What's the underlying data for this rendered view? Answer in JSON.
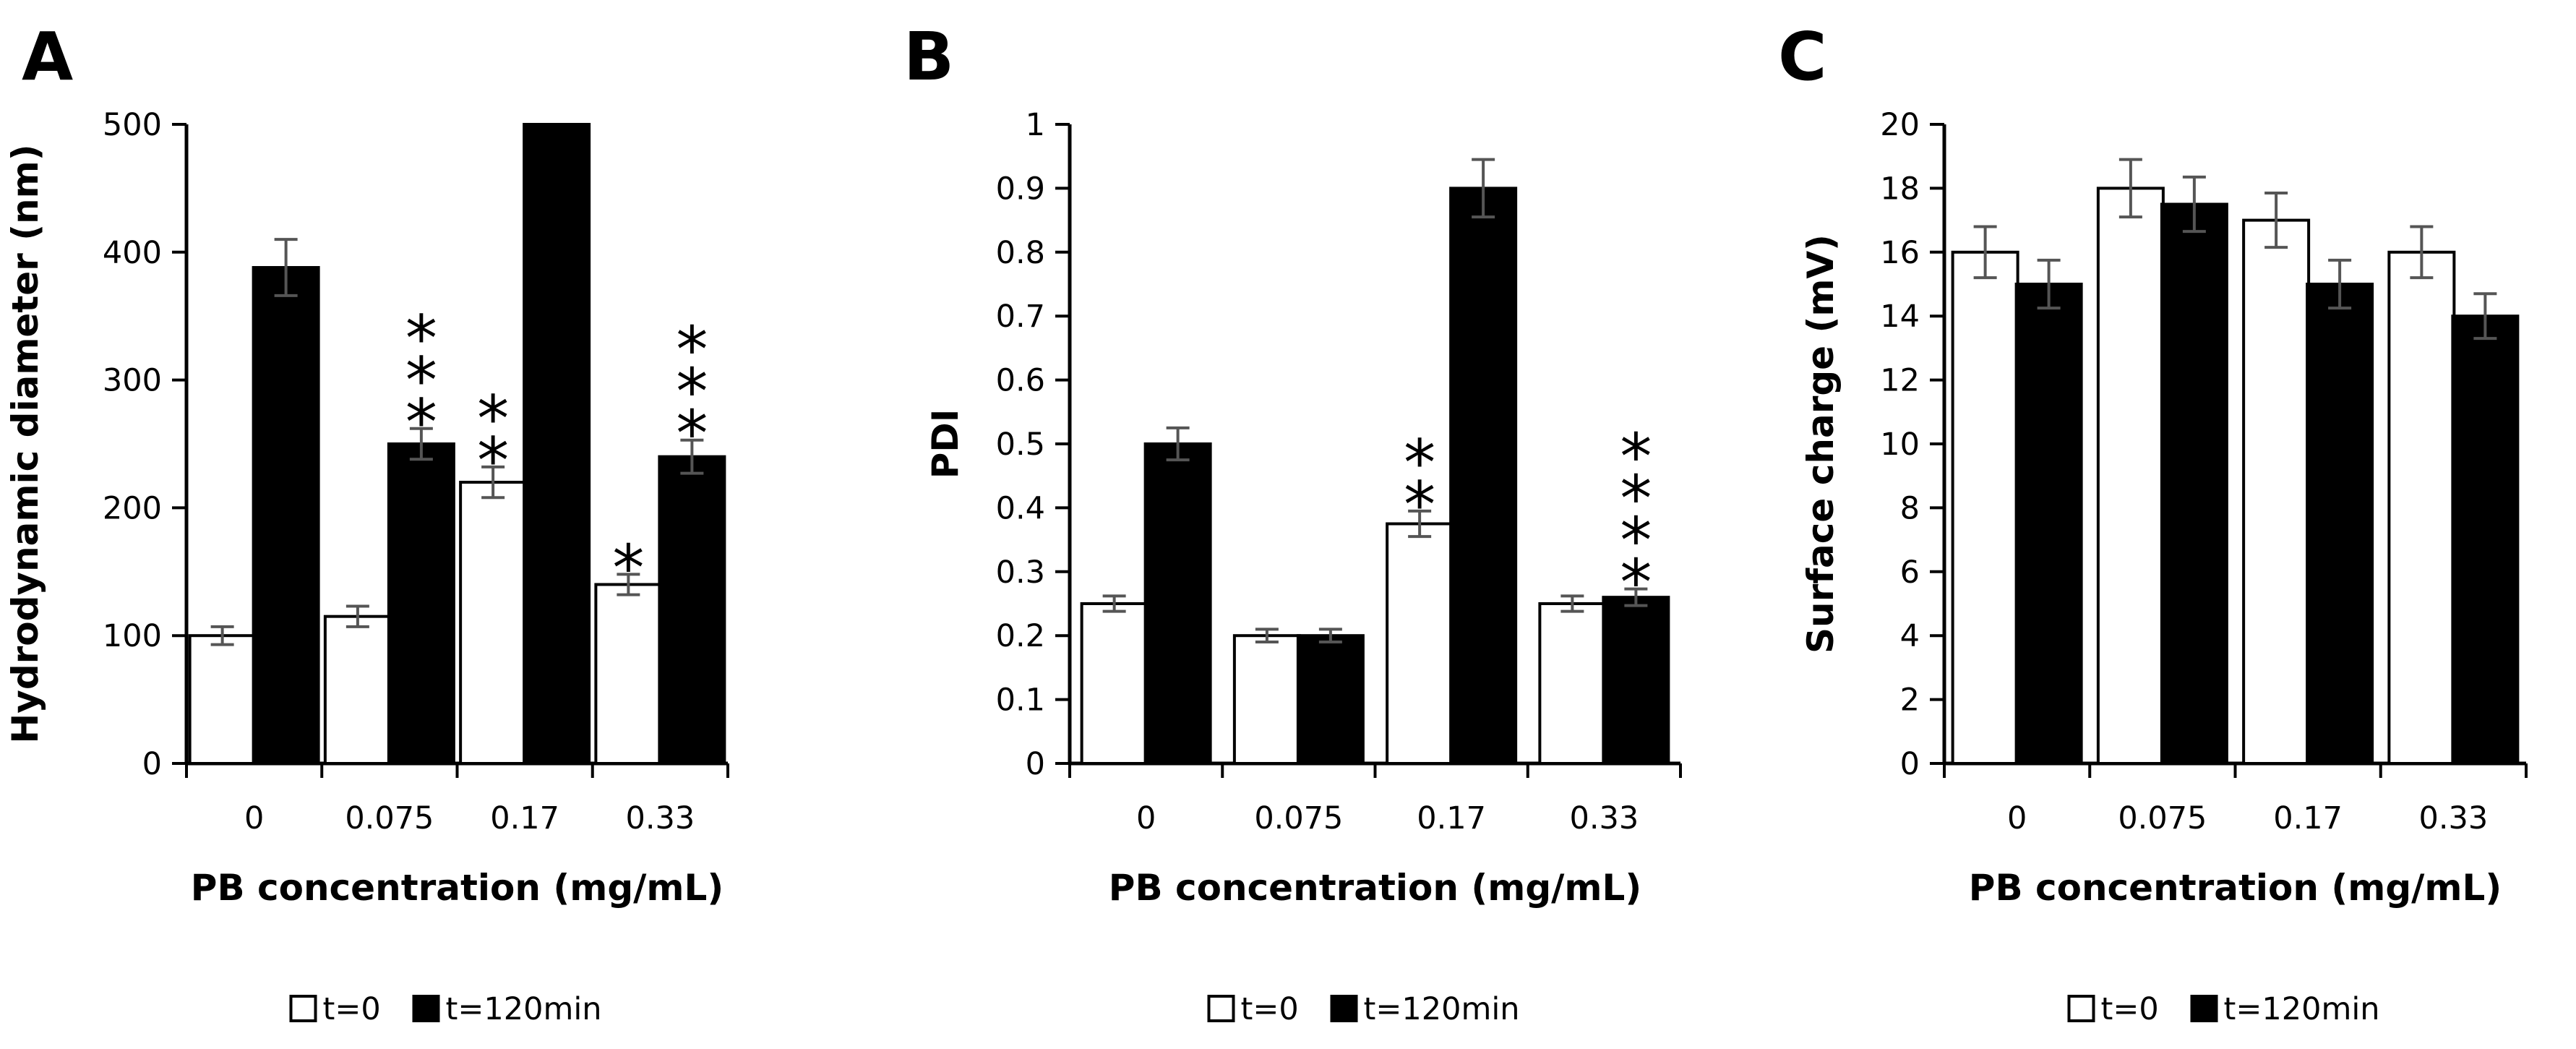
{
  "chart_data": [
    {
      "type": "bar",
      "panel_label": "A",
      "categories": [
        "0",
        "0.075",
        "0.17",
        "0.33"
      ],
      "series": [
        {
          "name": "t=0",
          "values": [
            100,
            115,
            220,
            140
          ],
          "errors": [
            7,
            8,
            12,
            8
          ]
        },
        {
          "name": "t=120min",
          "values": [
            388,
            250,
            500,
            240
          ],
          "errors": [
            22,
            12,
            0,
            13
          ]
        }
      ],
      "ylim": [
        0,
        500
      ],
      "yticks": [
        "0",
        "100",
        "200",
        "300",
        "400",
        "500"
      ],
      "xlabel": "PB concentration (mg/mL)",
      "ylabel": "Hydrodynamic diameter (nm)",
      "annotations": [
        {
          "category": 1,
          "series": 1,
          "text": "***"
        },
        {
          "category": 2,
          "series": 0,
          "text": "**"
        },
        {
          "category": 3,
          "series": 0,
          "text": "*"
        },
        {
          "category": 3,
          "series": 1,
          "text": "***"
        }
      ]
    },
    {
      "type": "bar",
      "panel_label": "B",
      "categories": [
        "0",
        "0.075",
        "0.17",
        "0.33"
      ],
      "series": [
        {
          "name": "t=0",
          "values": [
            0.25,
            0.2,
            0.375,
            0.25
          ],
          "errors": [
            0.012,
            0.01,
            0.02,
            0.012
          ]
        },
        {
          "name": "t=120min",
          "values": [
            0.5,
            0.2,
            0.9,
            0.26
          ],
          "errors": [
            0.025,
            0.01,
            0.045,
            0.013
          ]
        }
      ],
      "ylim": [
        0,
        1
      ],
      "yticks": [
        "0",
        "0.1",
        "0.2",
        "0.3",
        "0.4",
        "0.5",
        "0.6",
        "0.7",
        "0.8",
        "0.9",
        "1"
      ],
      "xlabel": "PB concentration (mg/mL)",
      "ylabel": "PDI",
      "annotations": [
        {
          "category": 2,
          "series": 0,
          "text": "**"
        },
        {
          "category": 3,
          "series": 1,
          "text": "****"
        }
      ]
    },
    {
      "type": "bar",
      "panel_label": "C",
      "categories": [
        "0",
        "0.075",
        "0.17",
        "0.33"
      ],
      "series": [
        {
          "name": "t=0",
          "values": [
            16,
            18,
            17,
            16
          ],
          "errors": [
            0.8,
            0.9,
            0.85,
            0.8
          ]
        },
        {
          "name": "t=120min",
          "values": [
            15,
            17.5,
            15,
            14
          ],
          "errors": [
            0.75,
            0.85,
            0.75,
            0.7
          ]
        }
      ],
      "ylim": [
        0,
        20
      ],
      "yticks": [
        "0",
        "2",
        "4",
        "6",
        "8",
        "10",
        "12",
        "14",
        "16",
        "18",
        "20"
      ],
      "xlabel": "PB concentration (mg/mL)",
      "ylabel": "Surface charge (mV)",
      "annotations": []
    }
  ],
  "legend": {
    "items": [
      "t=0",
      "t=120min"
    ]
  },
  "colors": {
    "series0_fill": "#ffffff",
    "series1_fill": "#000000",
    "axis": "#000000",
    "error_bar": "#555555"
  }
}
